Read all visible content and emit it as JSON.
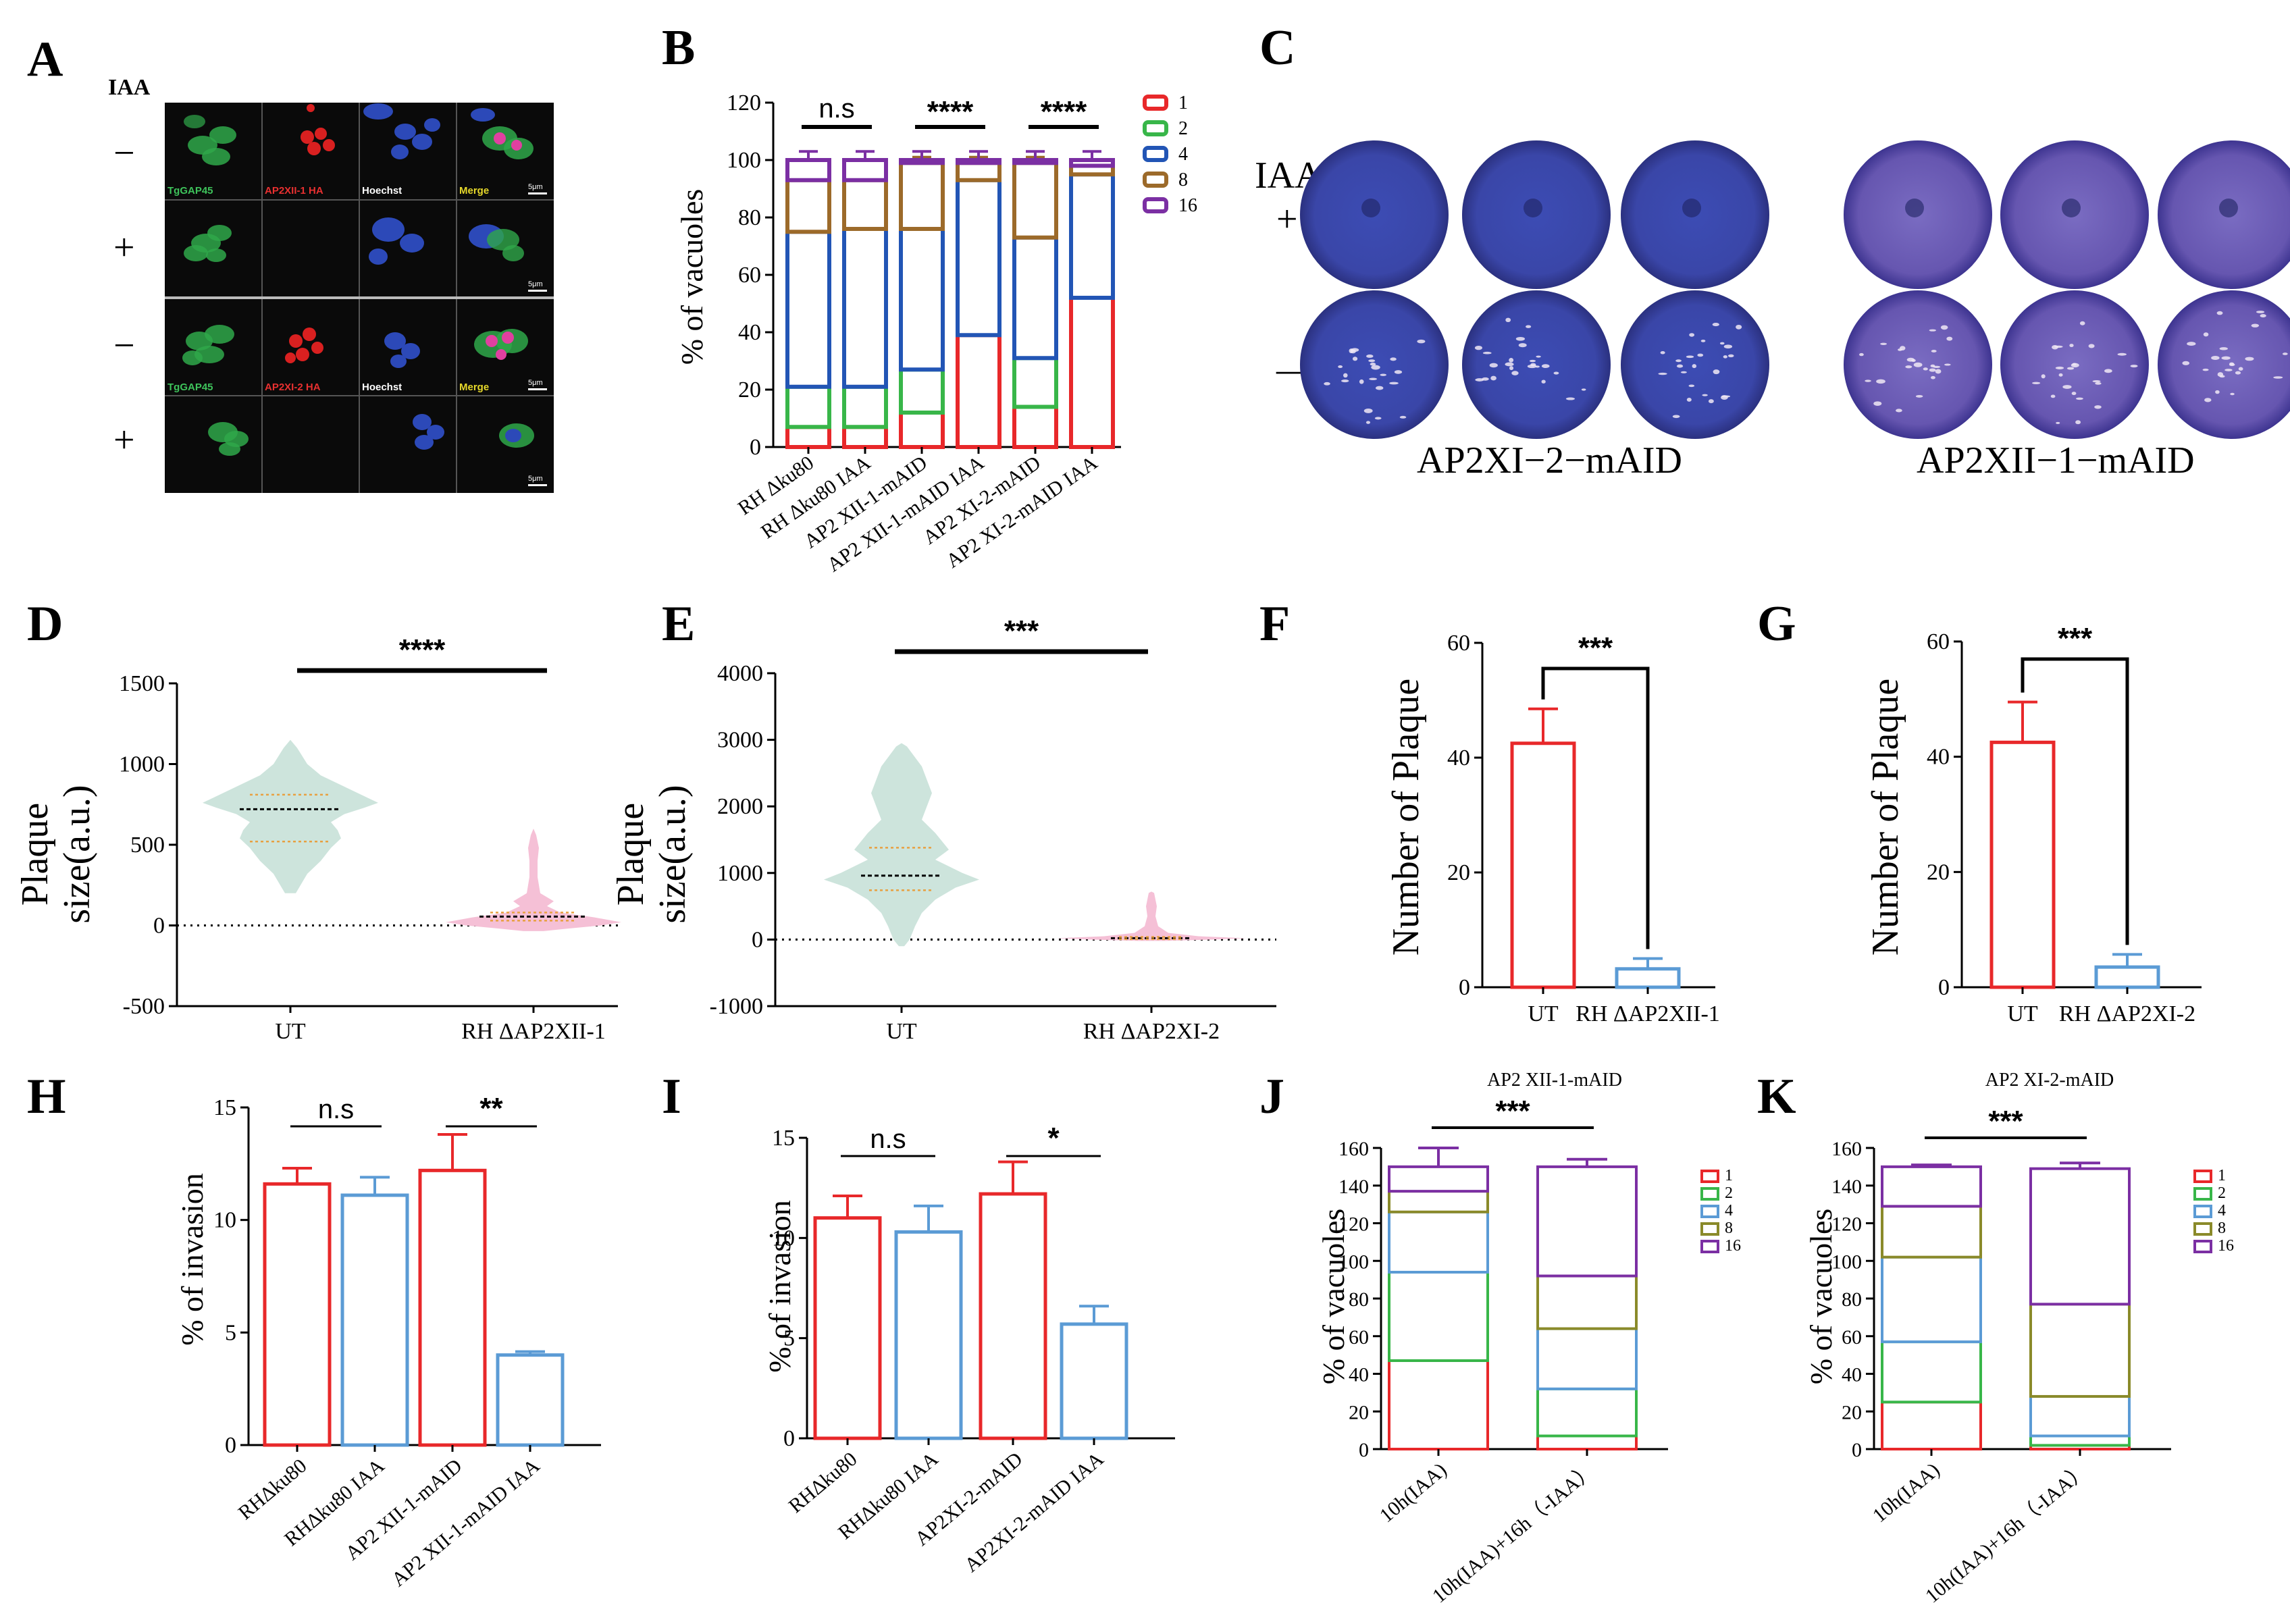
{
  "panels": {
    "A": {
      "label": "A",
      "iaa_label": "IAA",
      "row_signs": [
        "−",
        "+",
        "−",
        "+"
      ],
      "channel_labels_top": [
        "TgGAP45",
        "AP2XII-1 HA",
        "Hoechst",
        "Merge"
      ],
      "channel_labels_bottom": [
        "TgGAP45",
        "AP2XI-2 HA",
        "Hoechst",
        "Merge"
      ],
      "scale_label": "5μm"
    },
    "C": {
      "label": "C",
      "iaa_label": "IAA",
      "plus_sign": "+",
      "minus_sign": "—",
      "left_caption": "AP2XI−2−mAID",
      "right_caption": "AP2XII−1−mAID"
    }
  },
  "colors": {
    "red": "#e8282a",
    "green": "#38b649",
    "blue": "#2255b5",
    "brown": "#9c6a2a",
    "purple": "#7b2fa3",
    "teal": "#cde4dc",
    "pink": "#f5c0d6",
    "lightblue": "#5b9bd5",
    "olive": "#8a8a2a"
  },
  "chart_data": [
    {
      "panel": "B",
      "type": "bar",
      "stacked": true,
      "ylabel": "% of vacuoles",
      "ylim": [
        0,
        120
      ],
      "yticks": [
        0,
        20,
        40,
        60,
        80,
        100,
        120
      ],
      "categories": [
        "RH Δku80",
        "RH Δku80 IAA",
        "AP2 XII-1-mAID",
        "AP2 XII-1-mAID IAA",
        "AP2 XI-2-mAID",
        "AP2 XI-2-mAID IAA"
      ],
      "legend": [
        "1",
        "2",
        "4",
        "8",
        "16"
      ],
      "boundaries": [
        [
          7,
          21,
          75,
          93,
          100
        ],
        [
          7,
          21,
          76,
          93,
          100
        ],
        [
          12,
          27,
          76,
          99,
          100
        ],
        [
          39,
          39,
          93,
          99,
          100
        ],
        [
          14,
          31,
          73,
          99,
          100
        ],
        [
          52,
          52,
          95,
          98,
          100
        ]
      ],
      "sig": [
        {
          "groups": [
            0,
            1
          ],
          "label": "n.s"
        },
        {
          "groups": [
            2,
            3
          ],
          "label": "****"
        },
        {
          "groups": [
            4,
            5
          ],
          "label": "****"
        }
      ]
    },
    {
      "panel": "D",
      "type": "violin",
      "ylabel": "Plaque size(a.u.)",
      "ylim": [
        -500,
        1500
      ],
      "yticks": [
        -500,
        0,
        500,
        1000,
        1500
      ],
      "categories": [
        "UT",
        "RH ΔAP2XII-1"
      ],
      "medians": [
        720,
        55
      ],
      "quartiles": [
        [
          520,
          810
        ],
        [
          30,
          80
        ]
      ],
      "max": [
        1150,
        600
      ],
      "sig": "****"
    },
    {
      "panel": "E",
      "type": "violin",
      "ylabel": "Plaque size(a.u.)",
      "ylim": [
        -1000,
        4000
      ],
      "yticks": [
        -1000,
        0,
        1000,
        2000,
        3000,
        4000
      ],
      "categories": [
        "UT",
        "RH ΔAP2XI-2"
      ],
      "medians": [
        960,
        20
      ],
      "quartiles": [
        [
          740,
          1380
        ],
        [
          5,
          40
        ]
      ],
      "max": [
        2950,
        720
      ],
      "sig": "***"
    },
    {
      "panel": "F",
      "type": "bar",
      "ylabel": "Number of Plaque",
      "ylim": [
        0,
        60
      ],
      "yticks": [
        0,
        20,
        40,
        60
      ],
      "categories": [
        "UT",
        "RH ΔAP2XII-1"
      ],
      "values": [
        42.5,
        3.2
      ],
      "errors": [
        6,
        1.8
      ],
      "sig": "***"
    },
    {
      "panel": "G",
      "type": "bar",
      "ylabel": "Number of Plaque",
      "ylim": [
        0,
        60
      ],
      "yticks": [
        0,
        20,
        40,
        60
      ],
      "categories": [
        "UT",
        "RH ΔAP2XI-2"
      ],
      "values": [
        42.5,
        3.5
      ],
      "errors": [
        7,
        2.2
      ],
      "sig": "***"
    },
    {
      "panel": "H",
      "type": "bar",
      "ylabel": "% of invasion",
      "ylim": [
        0,
        15
      ],
      "yticks": [
        0,
        5,
        10,
        15
      ],
      "categories": [
        "RHΔku80",
        "RHΔku80 IAA",
        "AP2 XII-1-mAID",
        "AP2 XII-1-mAID IAA"
      ],
      "values": [
        11.6,
        11.1,
        12.2,
        4.0
      ],
      "errors": [
        0.7,
        0.8,
        1.6,
        0.15
      ],
      "sig": [
        {
          "groups": [
            0,
            1
          ],
          "label": "n.s"
        },
        {
          "groups": [
            2,
            3
          ],
          "label": "**"
        }
      ]
    },
    {
      "panel": "I",
      "type": "bar",
      "ylabel": "% of invasion",
      "ylim": [
        0,
        15
      ],
      "yticks": [
        0,
        5,
        10,
        15
      ],
      "categories": [
        "RHΔku80",
        "RHΔku80 IAA",
        "AP2XI-2-mAID",
        "AP2XI-2-mAID IAA"
      ],
      "values": [
        11.0,
        10.3,
        12.2,
        5.7
      ],
      "errors": [
        1.1,
        1.3,
        1.6,
        0.9
      ],
      "sig": [
        {
          "groups": [
            0,
            1
          ],
          "label": "n.s"
        },
        {
          "groups": [
            2,
            3
          ],
          "label": "*"
        }
      ]
    },
    {
      "panel": "J",
      "type": "bar",
      "stacked": true,
      "title": "AP2 XII-1-mAID",
      "ylabel": "% of vacuoles",
      "ylim": [
        0,
        160
      ],
      "yticks": [
        0,
        20,
        40,
        60,
        80,
        100,
        120,
        140,
        160
      ],
      "categories": [
        "10h(IAA)",
        "10h(IAA)+16h（-IAA）"
      ],
      "legend": [
        "1",
        "2",
        "4",
        "8",
        "16"
      ],
      "boundaries": [
        [
          47,
          94,
          126,
          137,
          150
        ],
        [
          7,
          32,
          64,
          92,
          150
        ]
      ],
      "errors": [
        [
          9,
          4,
          3,
          2,
          10
        ],
        [
          3,
          3,
          3,
          2,
          4
        ]
      ],
      "sig": "***"
    },
    {
      "panel": "K",
      "type": "bar",
      "stacked": true,
      "title": "AP2 XI-2-mAID",
      "ylabel": "% of vacuoles",
      "ylim": [
        0,
        160
      ],
      "yticks": [
        0,
        20,
        40,
        60,
        80,
        100,
        120,
        140,
        160
      ],
      "categories": [
        "10h(IAA)",
        "10h(IAA)+16h（-IAA）"
      ],
      "legend": [
        "1",
        "2",
        "4",
        "8",
        "16"
      ],
      "boundaries": [
        [
          25,
          57,
          102,
          129,
          150
        ],
        [
          2,
          7,
          28,
          77,
          149
        ]
      ],
      "errors": [
        [
          2,
          2,
          2,
          2,
          1
        ],
        [
          2,
          2,
          3,
          9,
          3
        ]
      ],
      "sig": "***"
    }
  ]
}
